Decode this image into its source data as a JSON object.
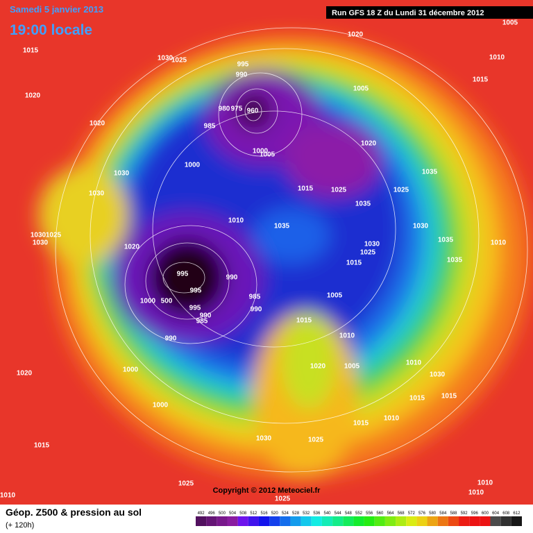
{
  "header": {
    "date": "Samedi 5 janvier 2013",
    "time": "19:00 locale",
    "run": "Run GFS 18 Z du Lundi 31 décembre 2012"
  },
  "copyright": "Copyright © 2012 Meteociel.fr",
  "footer": {
    "title": "Géop. Z500 & pression au sol",
    "lead": "(+ 120h)"
  },
  "isobar_labels": [
    1005,
    1020,
    1015,
    1030,
    1025,
    1010,
    1015,
    995,
    990,
    1005,
    1020,
    980,
    975,
    960,
    1020,
    985,
    1020,
    1000,
    1005,
    1000,
    1030,
    1035,
    1015,
    1025,
    1025,
    1030,
    1035,
    1010,
    1035,
    1030,
    1030,
    1025,
    1030,
    1035,
    1010,
    1020,
    1030,
    1025,
    1015,
    1035,
    995,
    990,
    995,
    985,
    1005,
    1000,
    500,
    990,
    995,
    990,
    985,
    1015,
    990,
    1010,
    1020,
    1005,
    1010,
    1000,
    1020,
    1030,
    1015,
    1015,
    1000,
    1010,
    1015,
    1030,
    1025,
    1015,
    1025,
    1010,
    1010,
    1010,
    1025
  ],
  "legend": {
    "ticks": [
      492,
      496,
      500,
      504,
      508,
      512,
      516,
      520,
      524,
      528,
      532,
      536,
      540,
      544,
      548,
      552,
      556,
      560,
      564,
      568,
      572,
      576,
      580,
      584,
      588,
      592,
      596,
      600,
      604,
      608,
      612
    ]
  }
}
